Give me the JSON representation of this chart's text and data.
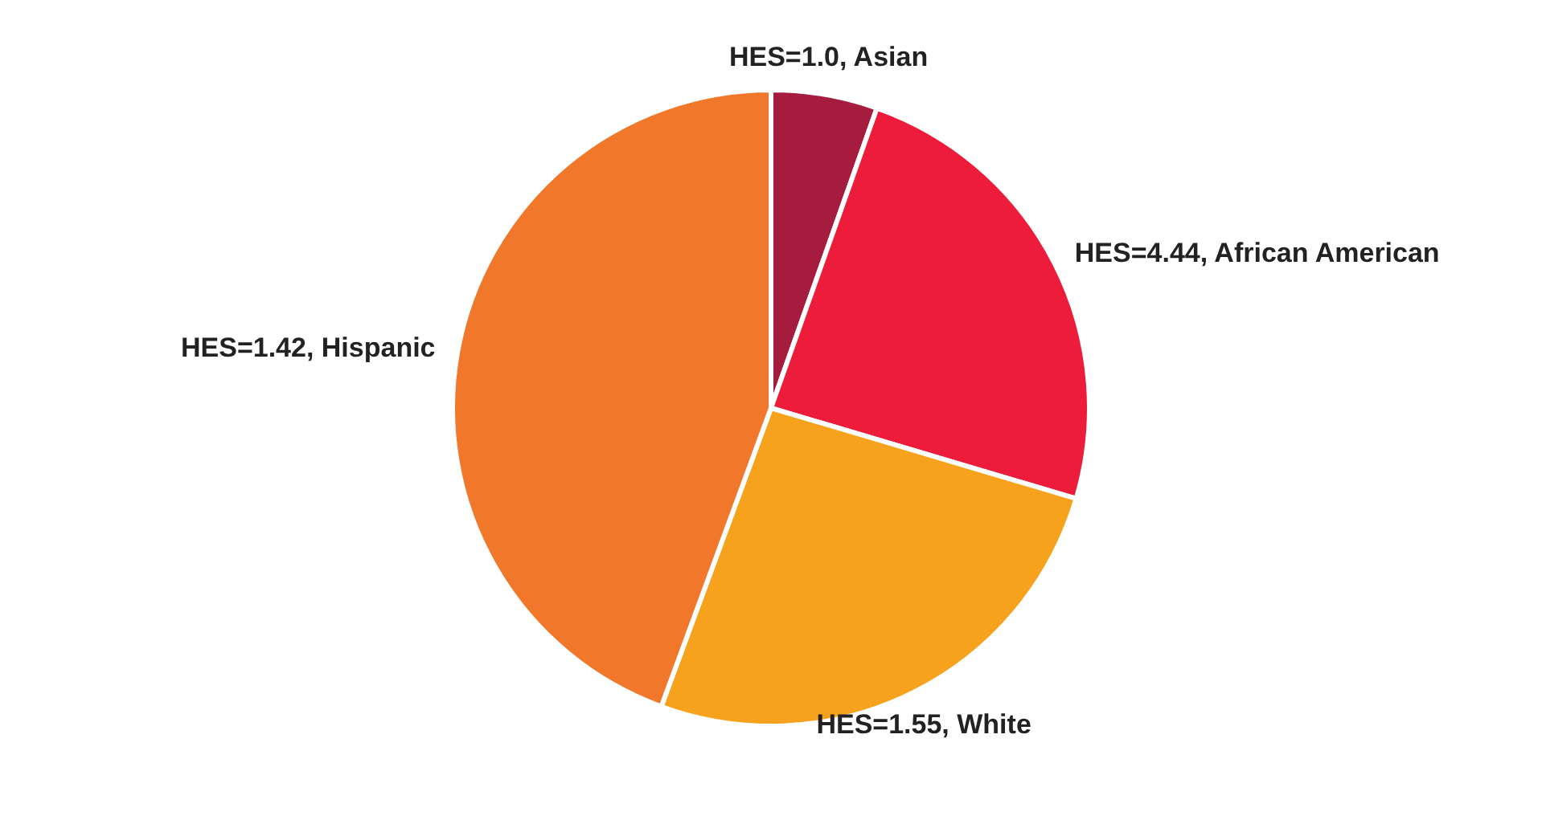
{
  "chart_data": {
    "type": "pie",
    "categories": [
      "HES=1.0, Asian",
      "HES=4.44, African American",
      "HES=1.55, White",
      "HES=1.42, Hispanic"
    ],
    "values": [
      5.4,
      24.2,
      26.0,
      44.4
    ],
    "colors": [
      "#a51c3f",
      "#ec1c3a",
      "#f7a21d",
      "#f1772b"
    ],
    "legend": false
  }
}
